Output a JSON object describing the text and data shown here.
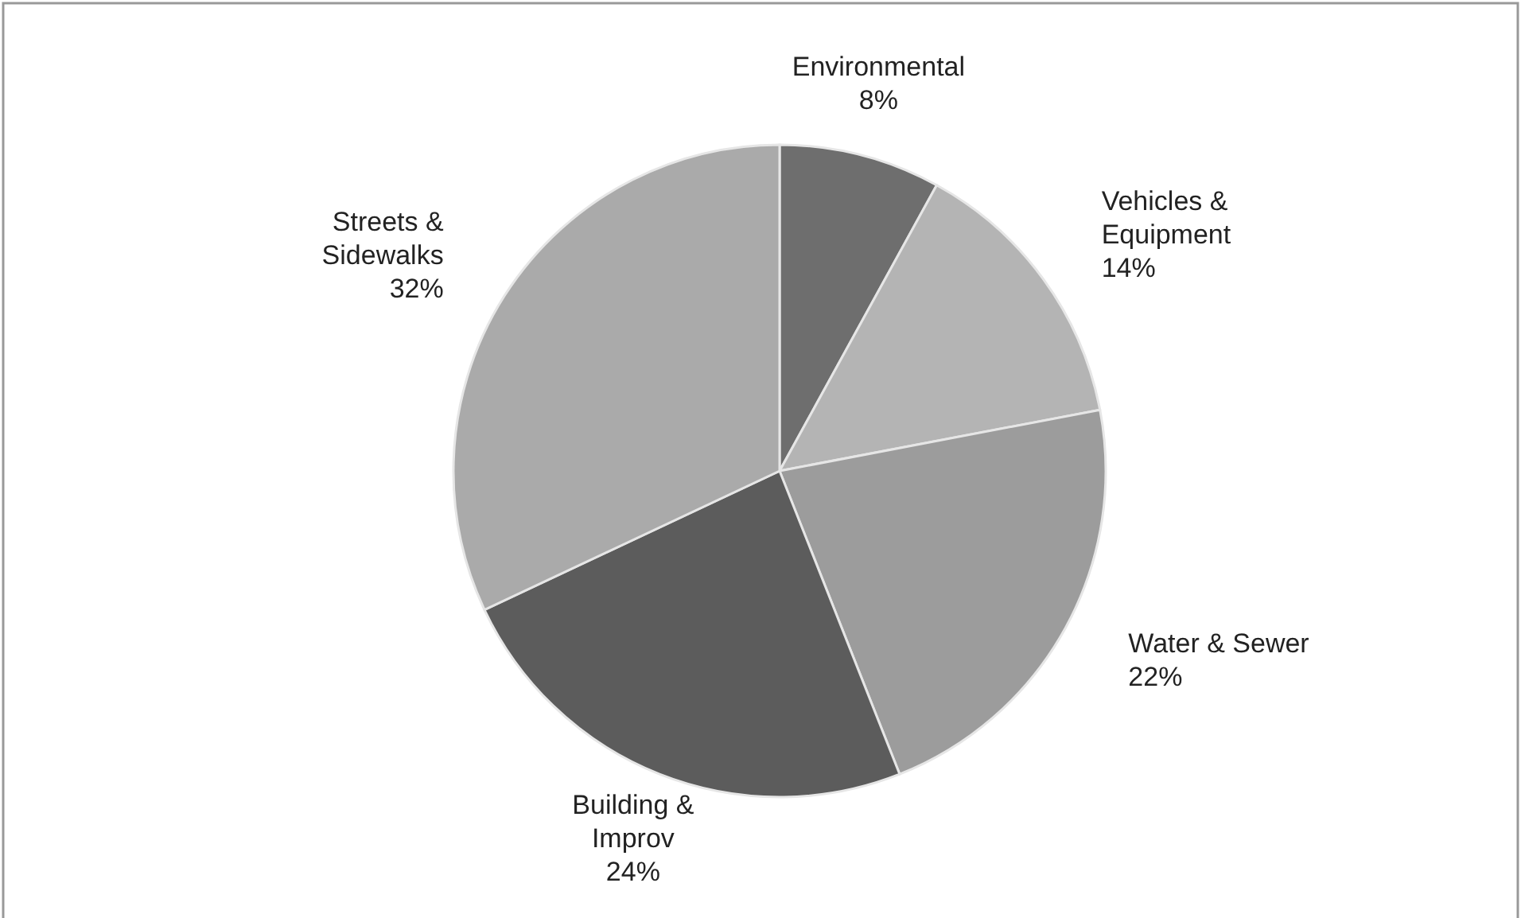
{
  "chart_data": {
    "type": "pie",
    "categories": [
      "Environmental",
      "Vehicles & Equipment",
      "Water & Sewer",
      "Building & Improv",
      "Streets & Sidewalks"
    ],
    "values": [
      8,
      14,
      22,
      24,
      32
    ],
    "value_labels": [
      "8%",
      "14%",
      "22%",
      "24%",
      "32%"
    ],
    "colors": [
      "#6e6e6e",
      "#b4b4b4",
      "#9c9c9c",
      "#5c5c5c",
      "#aaaaaa"
    ]
  }
}
